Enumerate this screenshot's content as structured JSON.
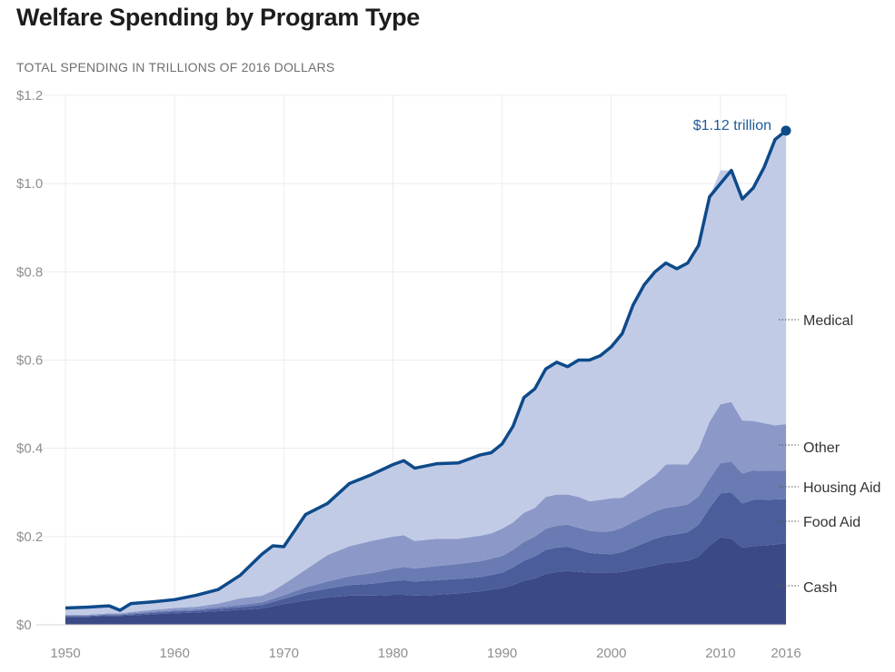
{
  "chart_data": {
    "type": "area",
    "stacked": true,
    "title": "Welfare Spending by Program Type",
    "subtitle": "TOTAL SPENDING IN TRILLIONS OF 2016 DOLLARS",
    "ylim": [
      0,
      1.2
    ],
    "y_ticks": [
      "$1.2",
      "$1.0",
      "$0.8",
      "$0.6",
      "$0.4",
      "$0.2",
      "$0"
    ],
    "y_tick_values": [
      1.2,
      1.0,
      0.8,
      0.6,
      0.4,
      0.2,
      0
    ],
    "x_ticks": [
      "1950",
      "1960",
      "1970",
      "1980",
      "1990",
      "2000",
      "2010",
      "2016"
    ],
    "x_tick_values": [
      1950,
      1960,
      1970,
      1980,
      1990,
      2000,
      2010,
      2016
    ],
    "grid": true,
    "x": [
      1950,
      1952,
      1954,
      1955,
      1956,
      1958,
      1960,
      1962,
      1964,
      1966,
      1968,
      1969,
      1970,
      1972,
      1974,
      1976,
      1978,
      1980,
      1981,
      1982,
      1984,
      1986,
      1988,
      1989,
      1990,
      1991,
      1992,
      1993,
      1994,
      1995,
      1996,
      1997,
      1998,
      1999,
      2000,
      2001,
      2002,
      2003,
      2004,
      2005,
      2006,
      2007,
      2008,
      2009,
      2010,
      2011,
      2012,
      2013,
      2014,
      2015,
      2016
    ],
    "series": [
      {
        "name": "Cash",
        "color": "#3b4a86",
        "values": [
          0.018,
          0.018,
          0.02,
          0.02,
          0.021,
          0.024,
          0.026,
          0.028,
          0.031,
          0.034,
          0.037,
          0.042,
          0.047,
          0.055,
          0.062,
          0.066,
          0.066,
          0.068,
          0.068,
          0.066,
          0.068,
          0.071,
          0.076,
          0.08,
          0.083,
          0.09,
          0.1,
          0.105,
          0.115,
          0.12,
          0.122,
          0.12,
          0.118,
          0.118,
          0.118,
          0.12,
          0.125,
          0.13,
          0.135,
          0.14,
          0.142,
          0.145,
          0.155,
          0.18,
          0.198,
          0.195,
          0.175,
          0.178,
          0.18,
          0.182,
          0.185
        ]
      },
      {
        "name": "Food Aid",
        "color": "#4c5d9c",
        "values": [
          0.002,
          0.002,
          0.002,
          0.002,
          0.003,
          0.003,
          0.004,
          0.004,
          0.005,
          0.006,
          0.008,
          0.01,
          0.012,
          0.018,
          0.02,
          0.024,
          0.027,
          0.031,
          0.033,
          0.032,
          0.033,
          0.033,
          0.032,
          0.033,
          0.035,
          0.04,
          0.045,
          0.05,
          0.055,
          0.055,
          0.055,
          0.05,
          0.045,
          0.043,
          0.042,
          0.045,
          0.05,
          0.055,
          0.06,
          0.062,
          0.063,
          0.065,
          0.072,
          0.085,
          0.1,
          0.105,
          0.1,
          0.105,
          0.103,
          0.102,
          0.1
        ]
      },
      {
        "name": "Housing Aid",
        "color": "#6a7bb4",
        "values": [
          0.001,
          0.001,
          0.002,
          0.002,
          0.002,
          0.003,
          0.003,
          0.003,
          0.004,
          0.005,
          0.006,
          0.007,
          0.008,
          0.012,
          0.016,
          0.02,
          0.024,
          0.028,
          0.03,
          0.03,
          0.032,
          0.034,
          0.036,
          0.037,
          0.038,
          0.04,
          0.043,
          0.045,
          0.048,
          0.05,
          0.05,
          0.05,
          0.05,
          0.05,
          0.052,
          0.055,
          0.058,
          0.06,
          0.062,
          0.063,
          0.063,
          0.063,
          0.064,
          0.066,
          0.068,
          0.07,
          0.068,
          0.067,
          0.066,
          0.065,
          0.065
        ]
      },
      {
        "name": "Other",
        "color": "#8c99c8",
        "values": [
          0.002,
          0.002,
          0.002,
          0.002,
          0.003,
          0.004,
          0.005,
          0.006,
          0.008,
          0.015,
          0.015,
          0.018,
          0.025,
          0.04,
          0.06,
          0.068,
          0.073,
          0.073,
          0.072,
          0.062,
          0.062,
          0.057,
          0.058,
          0.057,
          0.062,
          0.062,
          0.066,
          0.065,
          0.072,
          0.07,
          0.068,
          0.07,
          0.067,
          0.072,
          0.075,
          0.068,
          0.07,
          0.076,
          0.081,
          0.098,
          0.096,
          0.09,
          0.107,
          0.129,
          0.134,
          0.135,
          0.12,
          0.112,
          0.108,
          0.103,
          0.105
        ]
      },
      {
        "name": "Medical",
        "color": "#c2cbe6",
        "values": [
          0.015,
          0.017,
          0.017,
          0.007,
          0.019,
          0.018,
          0.019,
          0.026,
          0.032,
          0.052,
          0.094,
          0.102,
          0.085,
          0.125,
          0.117,
          0.142,
          0.15,
          0.163,
          0.169,
          0.165,
          0.17,
          0.172,
          0.183,
          0.183,
          0.192,
          0.218,
          0.261,
          0.27,
          0.29,
          0.3,
          0.29,
          0.31,
          0.32,
          0.327,
          0.343,
          0.372,
          0.422,
          0.449,
          0.462,
          0.457,
          0.443,
          0.457,
          0.462,
          0.51,
          0.53,
          0.525,
          0.502,
          0.528,
          0.58,
          0.648,
          0.665
        ]
      }
    ],
    "total_line": {
      "color": "#0d4a8a",
      "values": [
        0.038,
        0.04,
        0.043,
        0.033,
        0.048,
        0.052,
        0.057,
        0.067,
        0.08,
        0.112,
        0.16,
        0.179,
        0.177,
        0.25,
        0.275,
        0.32,
        0.34,
        0.363,
        0.372,
        0.355,
        0.365,
        0.367,
        0.385,
        0.39,
        0.41,
        0.45,
        0.515,
        0.535,
        0.58,
        0.595,
        0.585,
        0.6,
        0.6,
        0.61,
        0.63,
        0.66,
        0.725,
        0.77,
        0.8,
        0.82,
        0.807,
        0.82,
        0.86,
        0.97,
        1.0,
        1.03,
        0.965,
        0.99,
        1.037,
        1.1,
        1.12
      ]
    },
    "endpoint_label": "$1.12 trillion",
    "legend_labels": [
      "Medical",
      "Other",
      "Housing Aid",
      "Food Aid",
      "Cash"
    ]
  }
}
